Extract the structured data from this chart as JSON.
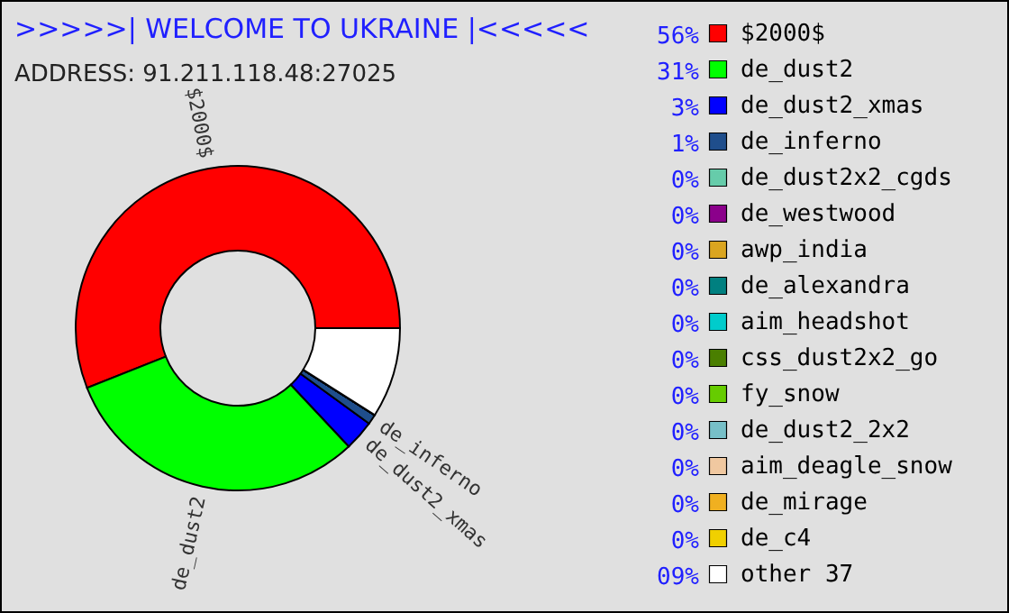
{
  "chart_data": {
    "type": "donut",
    "title": ">>>>>| WELCOME TO UKRAINE |<<<<<",
    "subtitle": "ADDRESS: 91.211.118.48:27025",
    "categories": [
      "$2000$",
      "de_dust2",
      "de_dust2_xmas",
      "de_inferno",
      "de_dust2x2_cgds",
      "de_westwood",
      "awp_india",
      "de_alexandra",
      "aim_headshot",
      "css_dust2x2_go",
      "fy_snow",
      "de_dust2_2x2",
      "aim_deagle_snow",
      "de_mirage",
      "de_c4",
      "other 37"
    ],
    "values": [
      56,
      31,
      3,
      1,
      0,
      0,
      0,
      0,
      0,
      0,
      0,
      0,
      0,
      0,
      0,
      9
    ],
    "colors": [
      "#ff0000",
      "#00ff00",
      "#0000ff",
      "#1f4e8c",
      "#66ccaa",
      "#8b008b",
      "#daa520",
      "#008080",
      "#00cccc",
      "#4a7f00",
      "#66cc00",
      "#77c0c8",
      "#f0c8a0",
      "#f0b020",
      "#f0d000",
      "#ffffff"
    ],
    "value_labels": [
      "56%",
      "31%",
      "3%",
      "1%",
      "0%",
      "0%",
      "0%",
      "0%",
      "0%",
      "0%",
      "0%",
      "0%",
      "0%",
      "0%",
      "0%",
      "09%"
    ],
    "legend": "right"
  }
}
